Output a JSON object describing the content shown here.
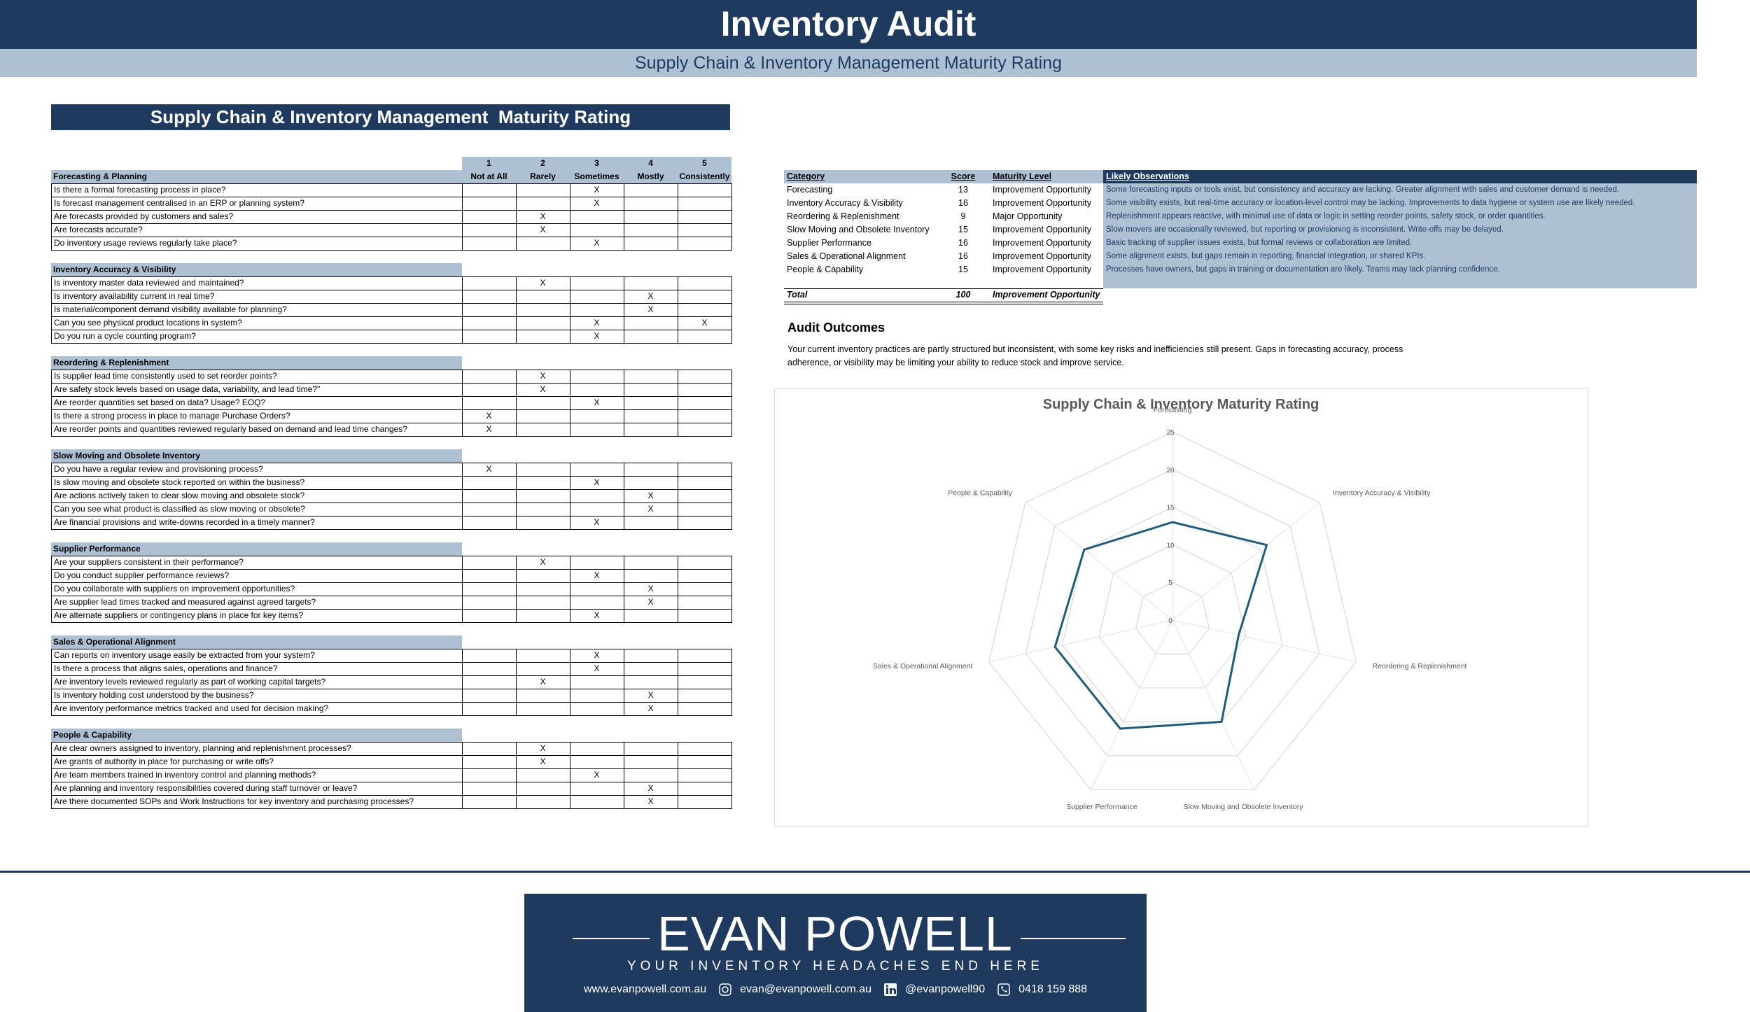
{
  "header": {
    "title": "Inventory Audit",
    "subtitle": "Supply Chain & Inventory Management Maturity Rating"
  },
  "survey": {
    "title": "Supply Chain & Inventory Management  Maturity Rating",
    "mark": "X",
    "scale": [
      {
        "number": 1,
        "label": "Not at All"
      },
      {
        "number": 2,
        "label": "Rarely"
      },
      {
        "number": 3,
        "label": "Sometimes"
      },
      {
        "number": 4,
        "label": "Mostly"
      },
      {
        "number": 5,
        "label": "Consistently"
      }
    ],
    "sections": [
      {
        "name": "Forecasting & Planning",
        "questions": [
          {
            "text": "Is there a formal forecasting process in place?",
            "ratings": [
              3
            ]
          },
          {
            "text": "Is forecast management centralised in an ERP or planning system?",
            "ratings": [
              3
            ]
          },
          {
            "text": "Are forecasts provided by customers and sales?",
            "ratings": [
              2
            ]
          },
          {
            "text": "Are forecasts accurate?",
            "ratings": [
              2
            ]
          },
          {
            "text": "Do inventory usage reviews regularly take place?",
            "ratings": [
              3
            ]
          }
        ]
      },
      {
        "name": "Inventory Accuracy & Visibility",
        "questions": [
          {
            "text": "Is inventory master data reviewed and maintained?",
            "ratings": [
              2
            ]
          },
          {
            "text": "Is inventory availability current in real time?",
            "ratings": [
              4
            ]
          },
          {
            "text": "Is material/component demand visibility available for planning?",
            "ratings": [
              4
            ]
          },
          {
            "text": "Can you see physical product locations in system?",
            "ratings": [
              3,
              5
            ]
          },
          {
            "text": "Do you run a cycle counting program?",
            "ratings": [
              3
            ]
          }
        ]
      },
      {
        "name": "Reordering & Replenishment",
        "questions": [
          {
            "text": "Is supplier lead time consistently used to set reorder points?",
            "ratings": [
              2
            ]
          },
          {
            "text": "Are safety stock levels based on usage data, variability, and lead time?\"",
            "ratings": [
              2
            ]
          },
          {
            "text": "Are reorder quantities set based on data?  Usage? EOQ?",
            "ratings": [
              3
            ]
          },
          {
            "text": "Is there a strong process in place to manage Purchase Orders?",
            "ratings": [
              1
            ]
          },
          {
            "text": "Are reorder points and quantities reviewed regularly based on demand and lead time changes?",
            "ratings": [
              1
            ]
          }
        ]
      },
      {
        "name": "Slow Moving and Obsolete Inventory",
        "questions": [
          {
            "text": "Do you have a regular review and provisioning process?",
            "ratings": [
              1
            ]
          },
          {
            "text": "Is slow moving and obsolete stock reported on within the business?",
            "ratings": [
              3
            ]
          },
          {
            "text": "Are actions actively taken to clear slow moving and obsolete stock?",
            "ratings": [
              4
            ]
          },
          {
            "text": "Can you see what product is classified as slow moving or obsolete?",
            "ratings": [
              4
            ]
          },
          {
            "text": "Are financial provisions and write-downs recorded in a timely manner?",
            "ratings": [
              3
            ]
          }
        ]
      },
      {
        "name": "Supplier Performance",
        "questions": [
          {
            "text": "Are your suppliers consistent in their performance?",
            "ratings": [
              2
            ]
          },
          {
            "text": "Do you conduct supplier performance reviews?",
            "ratings": [
              3
            ]
          },
          {
            "text": "Do you collaborate with suppliers on improvement opportunities?",
            "ratings": [
              4
            ]
          },
          {
            "text": "Are supplier lead times tracked and measured against agreed targets?",
            "ratings": [
              4
            ]
          },
          {
            "text": "Are alternate suppliers or contingency plans in place for key items?",
            "ratings": [
              3
            ]
          }
        ]
      },
      {
        "name": "Sales & Operational Alignment",
        "questions": [
          {
            "text": "Can reports on inventory usage easily be extracted from your system?",
            "ratings": [
              3
            ]
          },
          {
            "text": "Is there a process that aligns sales, operations and finance?",
            "ratings": [
              3
            ]
          },
          {
            "text": "Are inventory levels reviewed regularly as part of working capital targets?",
            "ratings": [
              2
            ]
          },
          {
            "text": "Is inventory holding cost understood by the business?",
            "ratings": [
              4
            ]
          },
          {
            "text": "Are inventory performance metrics tracked and used for decision making?",
            "ratings": [
              4
            ]
          }
        ]
      },
      {
        "name": "People & Capability",
        "questions": [
          {
            "text": "Are clear owners assigned to inventory, planning and replenishment processes?",
            "ratings": [
              2
            ]
          },
          {
            "text": "Are grants of authority in place for purchasing or write offs?",
            "ratings": [
              2
            ]
          },
          {
            "text": "Are team members trained in inventory control and planning methods?",
            "ratings": [
              3
            ]
          },
          {
            "text": "Are planning and inventory responsibilities covered during staff turnover or leave?",
            "ratings": [
              4
            ]
          },
          {
            "text": "Are there documented SOPs and Work Instructions for key inventory and purchasing processes?",
            "ratings": [
              4
            ]
          }
        ]
      }
    ]
  },
  "summary": {
    "columns": [
      "Category",
      "Score",
      "Maturity Level",
      "Likely Observations"
    ],
    "rows": [
      {
        "category": "Forecasting",
        "score": 13,
        "level": "Improvement Opportunity",
        "observation": "Some forecasting inputs or tools exist, but consistency and accuracy are lacking. Greater alignment with sales and customer demand is needed."
      },
      {
        "category": "Inventory Accuracy & Visibility",
        "score": 16,
        "level": "Improvement Opportunity",
        "observation": "Some visibility exists, but real-time accuracy or location-level control may be lacking. Improvements to data hygiene or system use are likely needed."
      },
      {
        "category": "Reordering & Replenishment",
        "score": 9,
        "level": "Major Opportunity",
        "observation": "Replenishment appears reactive, with minimal use of data or logic in setting reorder points, safety stock, or order quantities."
      },
      {
        "category": "Slow Moving and Obsolete Inventory",
        "score": 15,
        "level": "Improvement Opportunity",
        "observation": "Slow movers are occasionally reviewed, but reporting or provisioning is inconsistent. Write-offs may be delayed."
      },
      {
        "category": "Supplier Performance",
        "score": 16,
        "level": "Improvement Opportunity",
        "observation": "Basic tracking of supplier issues exists, but formal reviews or collaboration are limited."
      },
      {
        "category": "Sales & Operational Alignment",
        "score": 16,
        "level": "Improvement Opportunity",
        "observation": "Some alignment exists, but gaps remain in reporting, financial integration, or shared KPIs."
      },
      {
        "category": "People & Capability",
        "score": 15,
        "level": "Improvement Opportunity",
        "observation": "Processes have owners, but gaps in training or documentation are likely. Teams may lack planning confidence."
      }
    ],
    "total": {
      "label": "Total",
      "score": 100,
      "level": "Improvement Opportunity"
    }
  },
  "outcomes": {
    "title": "Audit Outcomes",
    "text": "Your current inventory practices are partly structured but inconsistent, with some key risks and inefficiencies still present. Gaps in forecasting accuracy, process adherence, or visibility may be limiting your ability to reduce stock and improve service."
  },
  "chart_data": {
    "type": "radar",
    "title": "Supply Chain & Inventory Maturity Rating",
    "categories": [
      "Forecasting",
      "Inventory Accuracy & Visibility",
      "Reordering & Replenishment",
      "Slow Moving and Obsolete Inventory",
      "Supplier Performance",
      "Sales & Operational Alignment",
      "People & Capability"
    ],
    "values": [
      13,
      16,
      9,
      15,
      16,
      16,
      15
    ],
    "rlim": [
      0,
      25
    ],
    "rticks": [
      0,
      5,
      10,
      15,
      20,
      25
    ],
    "color": "#1f5c7a",
    "grid": true
  },
  "footer": {
    "name": "EVAN POWELL",
    "tagline": "YOUR INVENTORY HEADACHES END HERE",
    "website": "www.evanpowell.com.au",
    "email": "evan@evanpowell.com.au",
    "social": "@evanpowell90",
    "phone": "0418 159 888"
  }
}
